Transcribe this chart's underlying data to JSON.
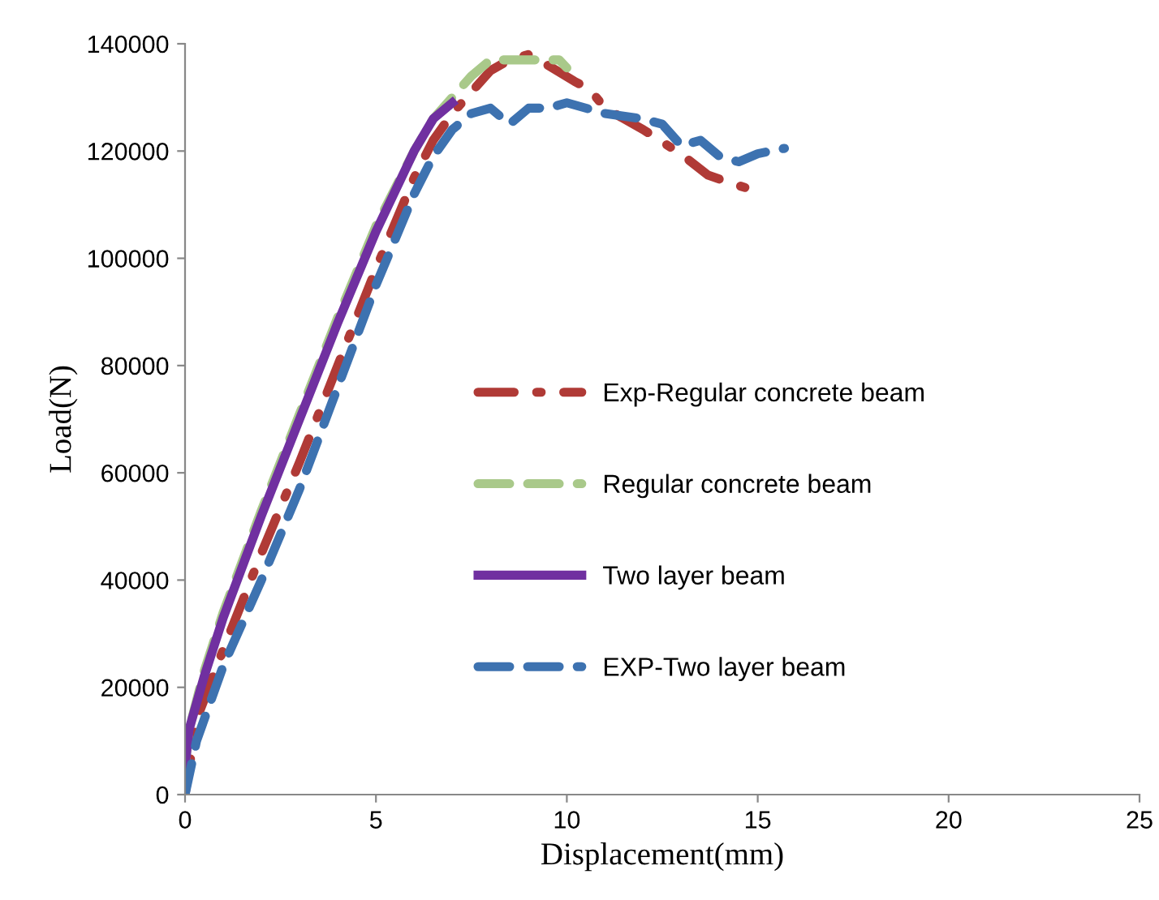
{
  "chart_data": {
    "type": "line",
    "xlabel": "Displacement(mm)",
    "ylabel": "Load(N)",
    "xlim": [
      0,
      25
    ],
    "xticks": [
      0,
      5,
      10,
      15,
      20,
      25
    ],
    "ylim": [
      0,
      140000
    ],
    "yticks": [
      0,
      20000,
      40000,
      60000,
      80000,
      100000,
      120000,
      140000
    ],
    "grid": false,
    "legend": "right",
    "marker": "none",
    "series": [
      {
        "name": "Exp-Regular concrete beam",
        "color": "#b03a36",
        "line_style": "dashdot",
        "x": [
          0,
          0.3,
          1,
          2,
          3,
          4,
          5,
          6,
          6.5,
          7,
          7.5,
          8,
          8.5,
          9,
          9.5,
          10.2,
          10.6,
          11,
          12,
          13,
          13.7,
          14.3,
          14.85
        ],
        "values": [
          0,
          14000,
          27000,
          45000,
          62000,
          80000,
          98000,
          115000,
          122000,
          127000,
          131000,
          135000,
          137000,
          138000,
          136000,
          133000,
          131500,
          128000,
          124000,
          119400,
          115500,
          114000,
          112800
        ]
      },
      {
        "name": "Regular concrete beam",
        "color": "#a9c98a",
        "line_style": "dashed",
        "x": [
          0,
          0.1,
          0.5,
          1,
          2,
          3,
          4,
          5,
          6,
          6.5,
          7,
          7.5,
          8,
          9,
          9.8,
          10
        ],
        "values": [
          5000,
          12000,
          23000,
          34000,
          53000,
          71000,
          89000,
          106000,
          120000,
          126000,
          130000,
          134000,
          137000,
          137000,
          137000,
          135500
        ]
      },
      {
        "name": "Two layer beam",
        "color": "#7030a0",
        "line_style": "solid",
        "x": [
          0,
          0.1,
          0.5,
          1,
          2,
          3,
          4,
          5,
          6,
          6.5,
          7
        ],
        "values": [
          5000,
          12000,
          22000,
          33000,
          52000,
          70000,
          88000,
          105000,
          120000,
          126000,
          129000
        ]
      },
      {
        "name": "EXP-Two layer beam",
        "color": "#3d72b0",
        "line_style": "dashed",
        "x": [
          0,
          0.3,
          1,
          2,
          3,
          4,
          5,
          6,
          6.5,
          7,
          7.5,
          8,
          8.5,
          9,
          9.5,
          10,
          11,
          12,
          12.5,
          13,
          13.5,
          14,
          14.5,
          15,
          15.7
        ],
        "values": [
          0,
          10000,
          24000,
          40000,
          57000,
          76000,
          95000,
          112000,
          119000,
          124000,
          127000,
          128000,
          125000,
          128000,
          128000,
          129000,
          127000,
          126000,
          125000,
          121000,
          122000,
          119000,
          118000,
          119500,
          120500
        ]
      }
    ]
  }
}
